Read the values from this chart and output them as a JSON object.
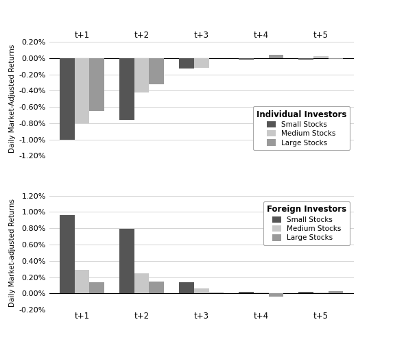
{
  "individual": {
    "title": "Individual Investors",
    "ylabel": "Daily Market-Adjusted Returns",
    "categories": [
      "t+1",
      "t+2",
      "t+3",
      "t+4",
      "t+5"
    ],
    "small_stocks": [
      -1.0,
      -0.76,
      -0.13,
      -0.02,
      -0.02
    ],
    "medium_stocks": [
      -0.8,
      -0.42,
      -0.12,
      0.0,
      0.02
    ],
    "large_stocks": [
      -0.65,
      -0.32,
      0.0,
      0.04,
      -0.01
    ],
    "ylim": [
      -1.2,
      0.2
    ],
    "yticks": [
      0.2,
      0.0,
      -0.2,
      -0.4,
      -0.6,
      -0.8,
      -1.0,
      -1.2
    ],
    "colors": [
      "#555555",
      "#c8c8c8",
      "#999999"
    ]
  },
  "foreign": {
    "title": "Foreign Investors",
    "ylabel": "Daily Market-adjusted Returns",
    "categories": [
      "t+1",
      "t+2",
      "t+3",
      "t+4",
      "t+5"
    ],
    "small_stocks": [
      0.96,
      0.79,
      0.14,
      0.02,
      0.02
    ],
    "medium_stocks": [
      0.29,
      0.25,
      0.06,
      0.01,
      0.01
    ],
    "large_stocks": [
      0.14,
      0.15,
      0.01,
      -0.04,
      0.03
    ],
    "ylim": [
      -0.2,
      1.2
    ],
    "yticks": [
      -0.2,
      0.0,
      0.2,
      0.4,
      0.6,
      0.8,
      1.0,
      1.2
    ],
    "colors": [
      "#555555",
      "#c8c8c8",
      "#999999"
    ]
  },
  "legend_labels": [
    "Small Stocks",
    "Medium Stocks",
    "Large Stocks"
  ]
}
